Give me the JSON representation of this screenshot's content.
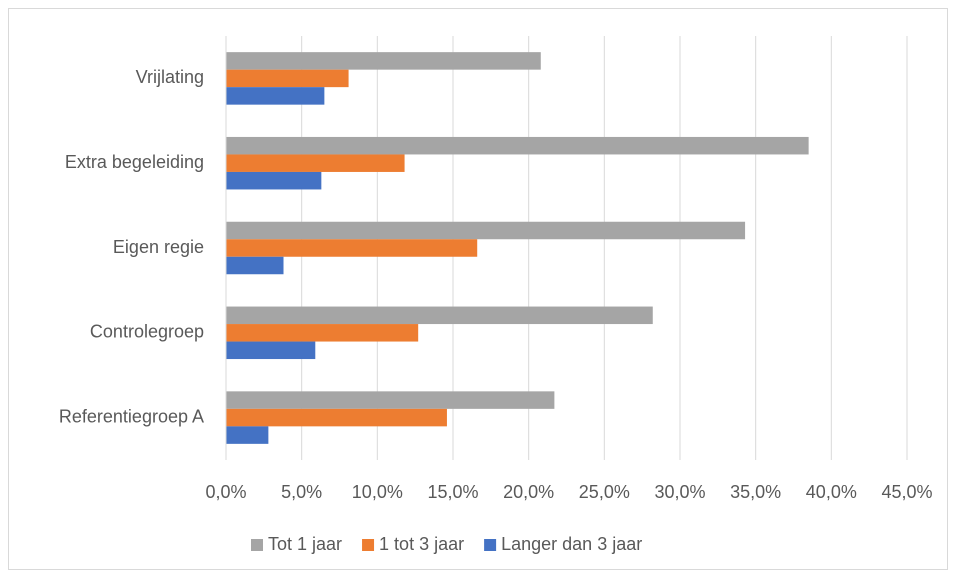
{
  "chart_data": {
    "type": "barh",
    "categories": [
      "Vrijlating",
      "Extra begeleiding",
      "Eigen regie",
      "Controlegroep",
      "Referentiegroep A"
    ],
    "series": [
      {
        "name": "Tot 1 jaar",
        "color": "#a5a5a5",
        "values": [
          20.8,
          38.5,
          34.3,
          28.2,
          21.7
        ]
      },
      {
        "name": "1 tot 3 jaar",
        "color": "#ed7d31",
        "values": [
          8.1,
          11.8,
          16.6,
          12.7,
          14.6
        ]
      },
      {
        "name": "Langer dan 3 jaar",
        "color": "#4472c4",
        "values": [
          6.5,
          6.3,
          3.8,
          5.9,
          2.8
        ]
      }
    ],
    "xlim": [
      0,
      45
    ],
    "xticks": [
      {
        "value": 0,
        "label": "0,0%"
      },
      {
        "value": 5,
        "label": "5,0%"
      },
      {
        "value": 10,
        "label": "10,0%"
      },
      {
        "value": 15,
        "label": "15,0%"
      },
      {
        "value": 20,
        "label": "20,0%"
      },
      {
        "value": 25,
        "label": "25,0%"
      },
      {
        "value": 30,
        "label": "30,0%"
      },
      {
        "value": 35,
        "label": "35,0%"
      },
      {
        "value": 40,
        "label": "40,0%"
      },
      {
        "value": 45,
        "label": "45,0%"
      }
    ],
    "grid": true,
    "legend": "bottom"
  }
}
